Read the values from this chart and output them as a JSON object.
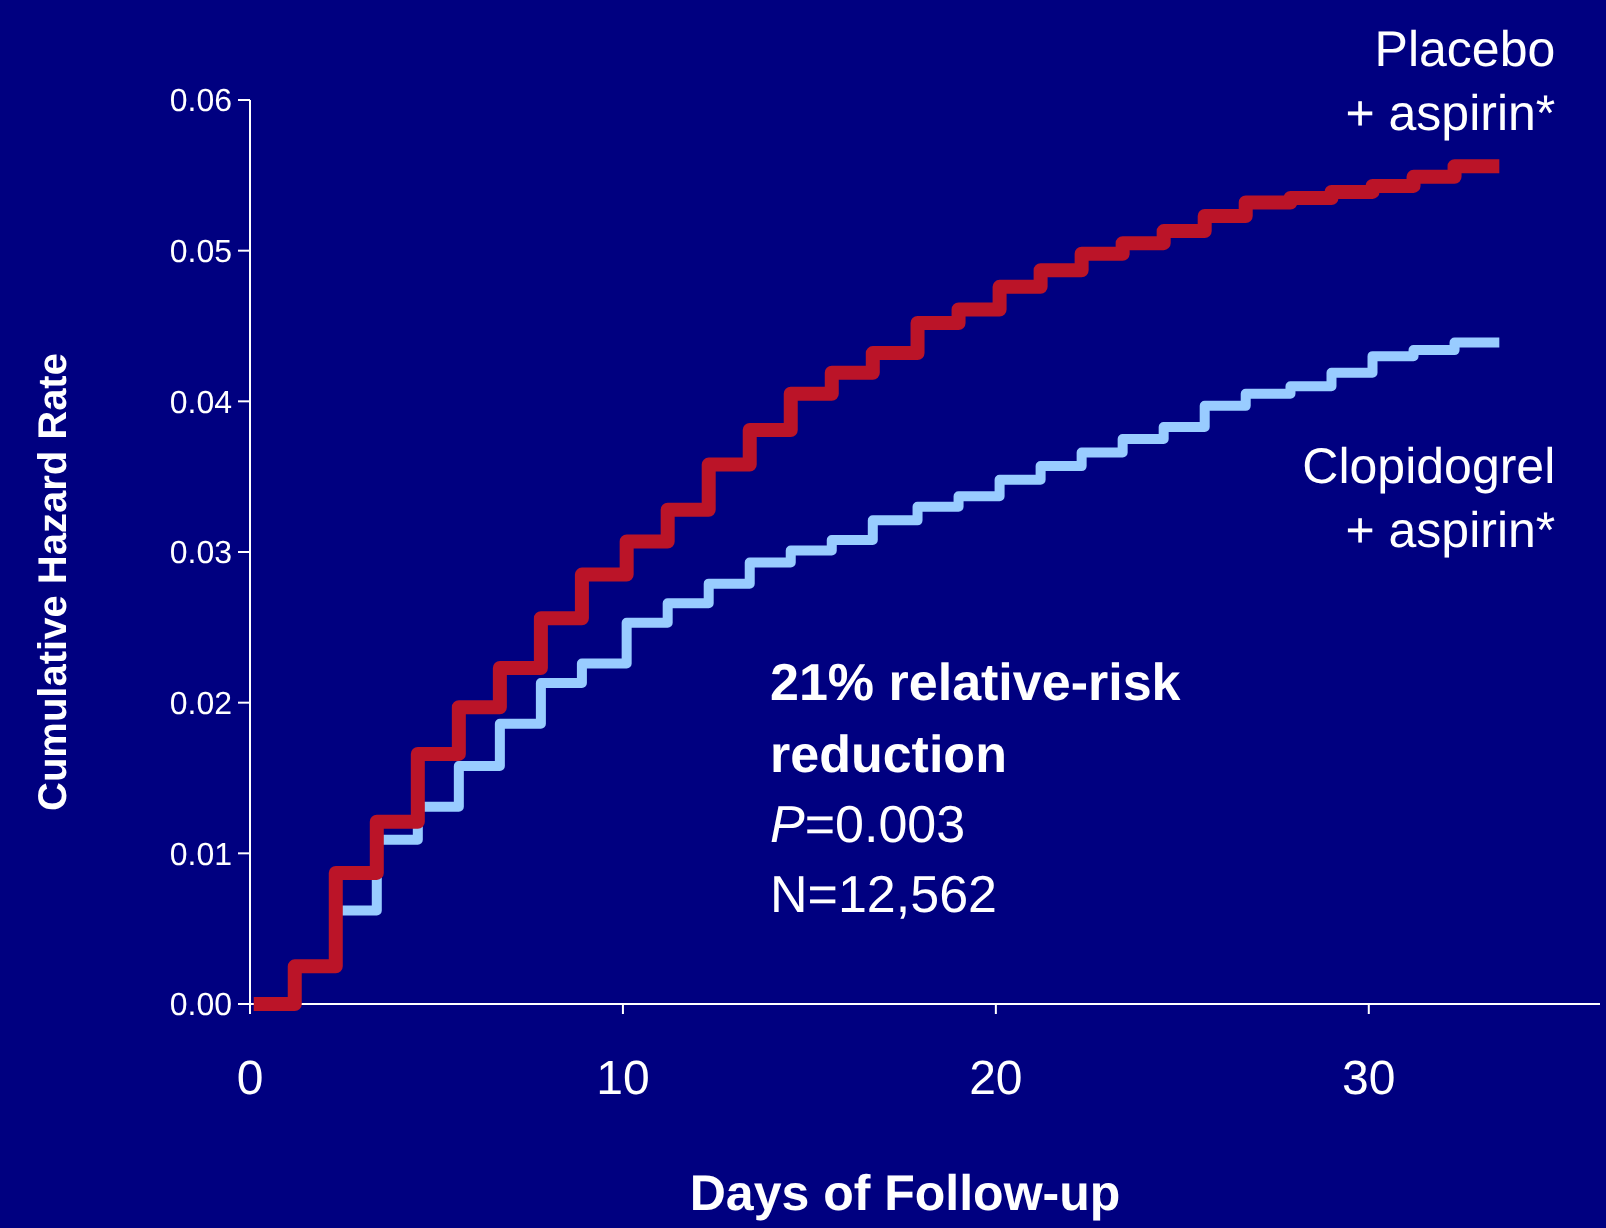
{
  "chart_data": {
    "type": "step",
    "xlabel": "Days of Follow-up",
    "ylabel": "Cumulative Hazard Rate",
    "xlim": [
      0,
      36.2
    ],
    "xticks": [
      0,
      10,
      20,
      30
    ],
    "ylim": [
      0,
      0.06
    ],
    "yticks": [
      {
        "value": 0,
        "label": "0.00"
      },
      {
        "value": 0.01,
        "label": "0.01"
      },
      {
        "value": 0.02,
        "label": "0.02"
      },
      {
        "value": 0.03,
        "label": "0.03"
      },
      {
        "value": 0.04,
        "label": "0.04"
      },
      {
        "value": 0.05,
        "label": "0.05"
      },
      {
        "value": 0.06,
        "label": "0.06"
      }
    ],
    "x": [
      0.1,
      1.2,
      2.3,
      3.4,
      4.5,
      5.6,
      6.7,
      7.8,
      8.9,
      10.1,
      11.2,
      12.3,
      13.4,
      14.5,
      15.6,
      16.7,
      17.9,
      19.0,
      20.1,
      21.2,
      22.3,
      23.4,
      24.5,
      25.6,
      26.7,
      27.9,
      29.0,
      30.1,
      31.2,
      32.3,
      33.5
    ],
    "series": [
      {
        "name": "Clopidogrel + aspirin*",
        "color": "#99ccff",
        "values": [
          null,
          null,
          0.0062,
          0.0109,
          0.0131,
          0.0158,
          0.0186,
          0.0213,
          0.0226,
          0.0253,
          0.0266,
          0.0279,
          0.0293,
          0.0301,
          0.0308,
          0.0321,
          0.033,
          0.0337,
          0.0348,
          0.0357,
          0.0366,
          0.0375,
          0.0383,
          0.0397,
          0.0405,
          0.041,
          0.0419,
          0.043,
          0.0434,
          0.0439,
          0.0439
        ]
      },
      {
        "name": "Placebo + aspirin*",
        "color": "#bb1428",
        "values": [
          0,
          0.0025,
          0.0087,
          0.0121,
          0.0166,
          0.0197,
          0.0223,
          0.0256,
          0.0285,
          0.0307,
          0.0328,
          0.0358,
          0.0381,
          0.0405,
          0.0419,
          0.0432,
          0.0452,
          0.0461,
          0.0476,
          0.0487,
          0.0498,
          0.0505,
          0.0513,
          0.0523,
          0.0532,
          0.0535,
          0.0539,
          0.0543,
          0.0549,
          0.0556,
          0.0556
        ]
      }
    ],
    "annotations": [
      "21% relative-risk reduction",
      "P=0.003",
      "N=12,562"
    ],
    "grid": false
  }
}
